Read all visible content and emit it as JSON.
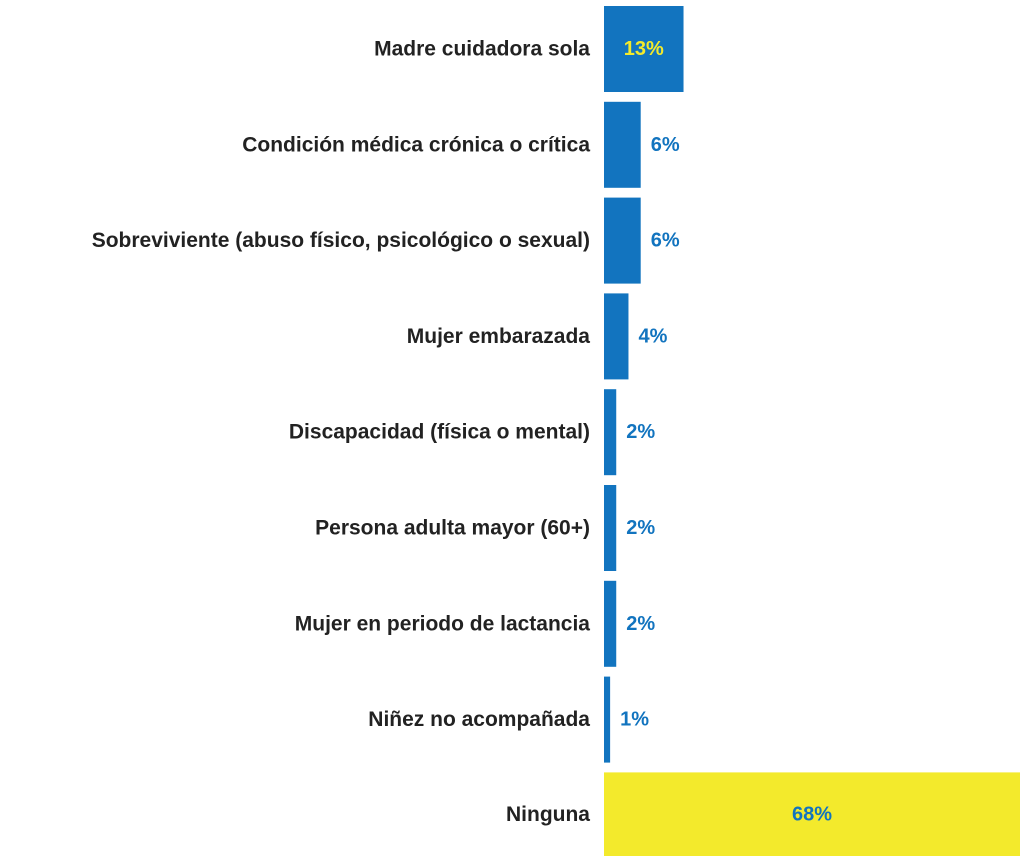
{
  "chart_data": {
    "type": "bar",
    "orientation": "horizontal",
    "categories": [
      "Madre cuidadora sola",
      "Condición médica crónica o crítica",
      "Sobreviviente (abuso físico, psicológico o sexual)",
      "Mujer embarazada",
      "Discapacidad (física o mental)",
      "Persona adulta mayor (60+)",
      "Mujer en periodo de lactancia",
      "Niñez no acompañada",
      "Ninguna"
    ],
    "values": [
      13,
      6,
      6,
      4,
      2,
      2,
      2,
      1,
      68
    ],
    "value_labels": [
      "13%",
      "6%",
      "6%",
      "4%",
      "2%",
      "2%",
      "2%",
      "1%",
      "68%"
    ],
    "unit": "%",
    "xlim": [
      0,
      68
    ],
    "grid": false,
    "legend": "none",
    "title": "",
    "xlabel": "",
    "ylabel": ""
  },
  "colors": {
    "bar": "#1274bf",
    "bar_highlight": "#f3ea2c",
    "label_inside": "#f3ea2c",
    "label_outside": "#1274bf",
    "label_on_highlight": "#1274bf",
    "category_text": "#222222"
  }
}
